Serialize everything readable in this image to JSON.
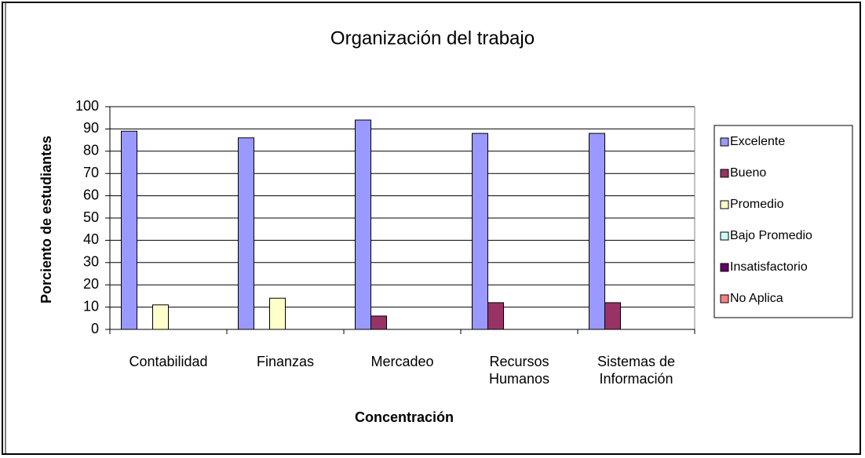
{
  "chart_data": {
    "type": "bar",
    "title": "Organización del trabajo",
    "xlabel": "Concentración",
    "ylabel": "Porciento de estudiantes",
    "categories": [
      "Contabilidad",
      "Finanzas",
      "Mercadeo",
      "Recursos Humanos",
      "Sistemas de Información"
    ],
    "series": [
      {
        "name": "Excelente",
        "color": "#9999ff",
        "values": [
          89,
          86,
          94,
          88,
          88
        ]
      },
      {
        "name": "Bueno",
        "color": "#993366",
        "values": [
          0,
          0,
          6,
          12,
          12
        ]
      },
      {
        "name": "Promedio",
        "color": "#ffffcc",
        "values": [
          11,
          14,
          0,
          0,
          0
        ]
      },
      {
        "name": "Bajo Promedio",
        "color": "#ccffff",
        "values": [
          0,
          0,
          0,
          0,
          0
        ]
      },
      {
        "name": "Insatisfactorio",
        "color": "#660066",
        "values": [
          0,
          0,
          0,
          0,
          0
        ]
      },
      {
        "name": "No Aplica",
        "color": "#ff8080",
        "values": [
          0,
          0,
          0,
          0,
          0
        ]
      }
    ],
    "ylim": [
      0,
      100
    ],
    "yticks": [
      0,
      10,
      20,
      30,
      40,
      50,
      60,
      70,
      80,
      90,
      100
    ],
    "grid": true,
    "legend": "right"
  }
}
